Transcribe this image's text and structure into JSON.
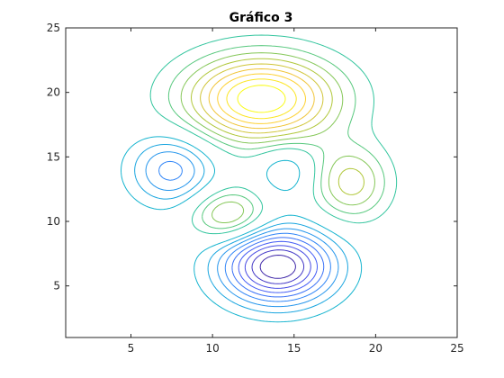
{
  "chart_data": {
    "type": "contour",
    "title": "Gráfico 3",
    "xlabel": "",
    "ylabel": "",
    "xlim": [
      1,
      25
    ],
    "ylim": [
      1,
      25
    ],
    "xticks": [
      5,
      10,
      15,
      20,
      25
    ],
    "yticks": [
      5,
      10,
      15,
      20,
      25
    ],
    "grid": false,
    "colormap": "parula",
    "peaks": [
      {
        "x": 13,
        "y": 19.5,
        "amplitude": 1.0,
        "sigma_x": 3.2,
        "sigma_y": 2.3
      },
      {
        "x": 14,
        "y": 6.5,
        "amplitude": -1.0,
        "sigma_x": 2.4,
        "sigma_y": 2.0
      },
      {
        "x": 7.5,
        "y": 14,
        "amplitude": -0.45,
        "sigma_x": 1.8,
        "sigma_y": 1.9
      },
      {
        "x": 18.5,
        "y": 13,
        "amplitude": 0.45,
        "sigma_x": 1.6,
        "sigma_y": 2.0
      },
      {
        "x": 11,
        "y": 10.5,
        "amplitude": 0.45,
        "sigma_x": 1.6,
        "sigma_y": 1.4
      },
      {
        "x": 14.5,
        "y": 14,
        "amplitude": -0.25,
        "sigma_x": 1.2,
        "sigma_y": 1.4
      }
    ],
    "levels": [
      -0.9,
      -0.8,
      -0.7,
      -0.6,
      -0.5,
      -0.4,
      -0.3,
      -0.2,
      -0.1,
      0.1,
      0.2,
      0.3,
      0.4,
      0.5,
      0.6,
      0.7,
      0.8,
      0.9
    ]
  }
}
